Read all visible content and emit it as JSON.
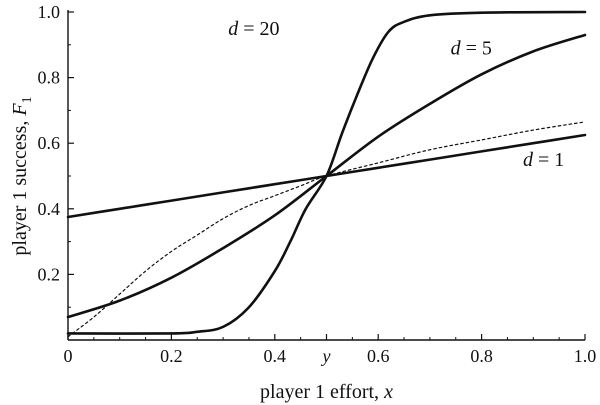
{
  "chart_data": {
    "type": "line",
    "xlabel": {
      "text": "player 1 effort, ",
      "var": "x"
    },
    "ylabel": {
      "text": "player 1 success, ",
      "var": "F",
      "sub": "1"
    },
    "xlim": [
      0,
      1
    ],
    "ylim": [
      0,
      1
    ],
    "x_ticks": [
      {
        "value": 0,
        "label": "0"
      },
      {
        "value": 0.2,
        "label": "0.2"
      },
      {
        "value": 0.4,
        "label": "0.4"
      },
      {
        "value": 0.5,
        "label": "y"
      },
      {
        "value": 0.6,
        "label": "0.6"
      },
      {
        "value": 0.8,
        "label": "0.8"
      },
      {
        "value": 1.0,
        "label": "1.0"
      }
    ],
    "y_ticks": [
      {
        "value": 0.2,
        "label": "0.2"
      },
      {
        "value": 0.4,
        "label": "0.4"
      },
      {
        "value": 0.6,
        "label": "0.6"
      },
      {
        "value": 0.8,
        "label": "0.8"
      },
      {
        "value": 1.0,
        "label": "1.0"
      }
    ],
    "grid": false,
    "series": [
      {
        "name": "d = 1",
        "label_var": "d",
        "label_value": "1",
        "style": "solid",
        "x": [
          0,
          0.1,
          0.2,
          0.3,
          0.4,
          0.5,
          0.6,
          0.7,
          0.8,
          0.9,
          1.0
        ],
        "y": [
          0.375,
          0.4,
          0.425,
          0.45,
          0.475,
          0.5,
          0.525,
          0.55,
          0.575,
          0.6,
          0.625
        ]
      },
      {
        "name": "d = 5",
        "label_var": "d",
        "label_value": "5",
        "style": "solid",
        "x": [
          0,
          0.1,
          0.2,
          0.3,
          0.4,
          0.5,
          0.6,
          0.7,
          0.8,
          0.9,
          1.0
        ],
        "y": [
          0.07,
          0.12,
          0.19,
          0.28,
          0.38,
          0.5,
          0.62,
          0.72,
          0.81,
          0.88,
          0.93
        ]
      },
      {
        "name": "d = 20",
        "label_var": "d",
        "label_value": "20",
        "style": "solid",
        "x": [
          0,
          0.2,
          0.25,
          0.3,
          0.35,
          0.4,
          0.43,
          0.46,
          0.5,
          0.53,
          0.56,
          0.59,
          0.62,
          0.65,
          0.7,
          0.8,
          1.0
        ],
        "y": [
          0.02,
          0.02,
          0.025,
          0.04,
          0.1,
          0.21,
          0.3,
          0.4,
          0.5,
          0.63,
          0.75,
          0.86,
          0.94,
          0.97,
          0.99,
          0.998,
          1.0
        ]
      },
      {
        "name": "",
        "style": "dotted",
        "x": [
          0,
          0.05,
          0.1,
          0.15,
          0.2,
          0.25,
          0.3,
          0.35,
          0.4,
          0.45,
          0.5,
          0.6,
          0.7,
          0.8,
          0.9,
          1.0
        ],
        "y": [
          0.01,
          0.07,
          0.14,
          0.21,
          0.27,
          0.32,
          0.37,
          0.41,
          0.44,
          0.47,
          0.5,
          0.54,
          0.58,
          0.61,
          0.64,
          0.665
        ]
      }
    ]
  }
}
